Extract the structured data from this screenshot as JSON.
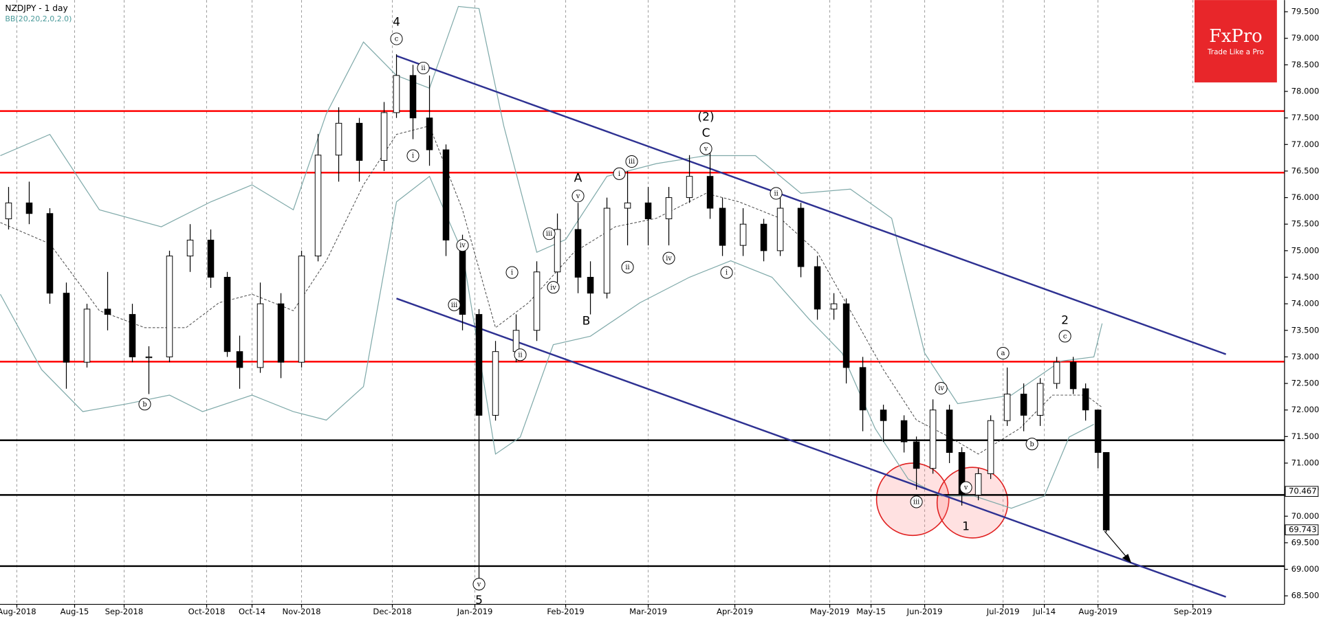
{
  "chart_data": {
    "type": "candlestick",
    "title": "NZDJPY - 1 day",
    "subtitle": "BB(20,20,2,0,2.0)",
    "up_color": "#ffffff",
    "down_color": "#000000",
    "xlim": [
      -4.08,
      307.2
    ],
    "ylim": [
      68.34,
      79.72
    ],
    "grid": true,
    "xticks": [
      {
        "value": 0,
        "label": "Aug-2018"
      },
      {
        "value": 14,
        "label": "Aug-15"
      },
      {
        "value": 26,
        "label": "Sep-2018"
      },
      {
        "value": 46,
        "label": "Oct-2018"
      },
      {
        "value": 57,
        "label": "Oct-14"
      },
      {
        "value": 69,
        "label": "Nov-2018"
      },
      {
        "value": 91,
        "label": "Dec-2018"
      },
      {
        "value": 111,
        "label": "Jan-2019"
      },
      {
        "value": 133,
        "label": "Feb-2019"
      },
      {
        "value": 153,
        "label": "Mar-2019"
      },
      {
        "value": 174,
        "label": "Apr-2019"
      },
      {
        "value": 197,
        "label": "May-2019"
      },
      {
        "value": 207,
        "label": "May-15"
      },
      {
        "value": 220,
        "label": "Jun-2019"
      },
      {
        "value": 239,
        "label": "Jul-2019"
      },
      {
        "value": 249,
        "label": "Jul-14"
      },
      {
        "value": 262,
        "label": "Aug-2019"
      },
      {
        "value": 285,
        "label": "Sep-2019"
      }
    ],
    "yticks": [
      {
        "value": 68.5,
        "label": "68.500"
      },
      {
        "value": 69.0,
        "label": "69.000"
      },
      {
        "value": 69.5,
        "label": "69.500"
      },
      {
        "value": 70.0,
        "label": "70.000"
      },
      {
        "value": 70.5,
        "label": "70.500"
      },
      {
        "value": 71.0,
        "label": "71.000"
      },
      {
        "value": 71.5,
        "label": "71.500"
      },
      {
        "value": 72.0,
        "label": "72.000"
      },
      {
        "value": 72.5,
        "label": "72.500"
      },
      {
        "value": 73.0,
        "label": "73.000"
      },
      {
        "value": 73.5,
        "label": "73.500"
      },
      {
        "value": 74.0,
        "label": "74.000"
      },
      {
        "value": 74.5,
        "label": "74.500"
      },
      {
        "value": 75.0,
        "label": "75.000"
      },
      {
        "value": 75.5,
        "label": "75.500"
      },
      {
        "value": 76.0,
        "label": "76.000"
      },
      {
        "value": 76.5,
        "label": "76.500"
      },
      {
        "value": 77.0,
        "label": "77.000"
      },
      {
        "value": 77.5,
        "label": "77.500"
      },
      {
        "value": 78.0,
        "label": "78.000"
      },
      {
        "value": 78.5,
        "label": "78.500"
      },
      {
        "value": 79.0,
        "label": "79.000"
      },
      {
        "value": 79.5,
        "label": "79.500"
      }
    ],
    "candles": {
      "x": [
        -2,
        3,
        8,
        12,
        17,
        22,
        28,
        32,
        37,
        42,
        47,
        51,
        54,
        59,
        64,
        69,
        73,
        78,
        83,
        89,
        92,
        96,
        100,
        104,
        108,
        112,
        116,
        121,
        126,
        131,
        136,
        139,
        143,
        148,
        153,
        158,
        163,
        168,
        171,
        176,
        181,
        185,
        190,
        194,
        198,
        201,
        205,
        210,
        215,
        218,
        222,
        226,
        229,
        233,
        236,
        240,
        244,
        248,
        252,
        256,
        259,
        262,
        264
      ],
      "open": [
        75.6,
        75.9,
        75.7,
        74.2,
        72.9,
        73.9,
        73.8,
        73.0,
        73.0,
        74.9,
        75.2,
        74.5,
        73.1,
        72.8,
        74.0,
        72.9,
        74.9,
        76.8,
        77.4,
        76.7,
        77.6,
        78.3,
        77.5,
        76.9,
        75.2,
        73.8,
        71.9,
        73.1,
        73.5,
        74.6,
        75.4,
        74.5,
        74.2,
        75.8,
        75.9,
        75.6,
        76.0,
        76.4,
        75.8,
        75.1,
        75.5,
        75.0,
        75.8,
        74.7,
        73.9,
        74.0,
        72.8,
        72.0,
        71.8,
        71.4,
        70.9,
        72.0,
        71.2,
        70.4,
        70.8,
        71.8,
        72.3,
        71.9,
        72.5,
        72.9,
        72.4,
        72.0,
        71.2
      ],
      "high": [
        76.2,
        76.3,
        75.8,
        74.4,
        74.0,
        74.6,
        74.0,
        73.2,
        75.0,
        75.5,
        75.4,
        74.6,
        73.4,
        74.4,
        74.2,
        75.0,
        77.2,
        77.7,
        77.5,
        77.8,
        78.7,
        78.5,
        78.3,
        77.0,
        75.3,
        73.9,
        73.3,
        73.8,
        74.8,
        75.7,
        75.9,
        74.8,
        76.0,
        76.5,
        76.2,
        76.2,
        76.8,
        76.9,
        76.0,
        75.8,
        75.6,
        76.0,
        75.9,
        74.9,
        74.2,
        74.1,
        73.0,
        72.1,
        71.9,
        71.5,
        72.2,
        72.1,
        71.3,
        70.9,
        71.9,
        72.8,
        72.5,
        72.6,
        73.0,
        73.0,
        72.5,
        72.0,
        71.2
      ],
      "low": [
        75.4,
        75.5,
        74.0,
        72.4,
        72.8,
        73.5,
        72.9,
        72.3,
        72.9,
        74.6,
        74.3,
        73.0,
        72.4,
        72.7,
        72.6,
        72.8,
        74.8,
        76.3,
        76.3,
        76.5,
        77.5,
        77.1,
        76.6,
        74.9,
        73.5,
        68.6,
        71.8,
        72.9,
        73.3,
        74.4,
        74.2,
        73.8,
        74.1,
        75.1,
        75.1,
        75.1,
        75.9,
        75.6,
        74.9,
        74.9,
        74.8,
        74.9,
        74.5,
        73.7,
        73.7,
        72.5,
        71.6,
        71.4,
        71.2,
        70.5,
        70.8,
        71.0,
        70.2,
        70.3,
        70.7,
        71.7,
        71.6,
        71.7,
        72.4,
        72.3,
        71.8,
        70.9,
        69.7
      ],
      "close": [
        75.9,
        75.7,
        74.2,
        72.9,
        73.9,
        73.8,
        73.0,
        73.0,
        74.9,
        75.2,
        74.5,
        73.1,
        72.8,
        74.0,
        72.9,
        74.9,
        76.8,
        77.4,
        76.7,
        77.6,
        78.3,
        77.5,
        76.9,
        75.2,
        73.8,
        71.9,
        73.1,
        73.5,
        74.6,
        75.4,
        74.5,
        74.2,
        75.8,
        75.9,
        75.6,
        76.0,
        76.4,
        75.8,
        75.1,
        75.5,
        75.0,
        75.8,
        74.7,
        73.9,
        74.0,
        72.8,
        72.0,
        71.8,
        71.4,
        70.9,
        72.0,
        71.2,
        70.4,
        70.8,
        71.8,
        72.3,
        71.9,
        72.5,
        72.9,
        72.4,
        72.0,
        71.2,
        69.74
      ]
    },
    "band_color": "#7fa9a9",
    "bollinger": {
      "upper": {
        "x": [
          -4,
          8,
          20,
          35,
          47,
          57,
          67,
          75,
          84,
          92,
          100,
          107,
          112,
          118,
          126,
          133,
          143,
          155,
          167,
          179,
          190,
          202,
          212,
          220,
          228,
          241,
          253,
          261,
          263
        ],
        "values": [
          76.79,
          77.19,
          75.77,
          75.45,
          75.92,
          76.24,
          75.77,
          77.58,
          78.93,
          78.3,
          78.06,
          79.6,
          79.56,
          77.35,
          74.97,
          75.21,
          76.4,
          76.64,
          76.79,
          76.79,
          76.08,
          76.16,
          75.61,
          73.07,
          72.12,
          72.28,
          72.92,
          73.0,
          73.63
        ]
      },
      "middle": {
        "x": [
          -4,
          8,
          20,
          31,
          41,
          49,
          57,
          67,
          75,
          84,
          92,
          100,
          108,
          116,
          124,
          135,
          145,
          155,
          167,
          175,
          185,
          194,
          202,
          210,
          218,
          226,
          233,
          243,
          251,
          259,
          263
        ],
        "values": [
          75.53,
          75.13,
          73.87,
          73.55,
          73.55,
          74.02,
          74.18,
          73.87,
          74.81,
          76.24,
          77.19,
          77.35,
          75.77,
          73.55,
          74.02,
          74.97,
          75.45,
          75.61,
          76.08,
          75.92,
          75.61,
          74.97,
          73.87,
          72.76,
          71.81,
          71.49,
          71.17,
          71.65,
          72.28,
          72.28,
          72.05
        ]
      },
      "lower": {
        "x": [
          -4,
          6,
          16,
          27,
          37,
          45,
          57,
          67,
          75,
          84,
          92,
          100,
          108,
          116,
          122,
          130,
          139,
          151,
          163,
          173,
          183,
          192,
          200,
          208,
          216,
          224,
          232,
          241,
          249,
          255,
          261
        ],
        "values": [
          74.18,
          72.76,
          71.97,
          72.12,
          72.28,
          71.97,
          72.28,
          71.97,
          71.81,
          72.44,
          75.92,
          76.4,
          74.97,
          71.17,
          71.49,
          73.23,
          73.39,
          74.02,
          74.5,
          74.81,
          74.5,
          73.71,
          73.07,
          71.65,
          70.7,
          70.38,
          70.38,
          70.15,
          70.38,
          71.49,
          71.73
        ]
      }
    },
    "levels": {
      "red": [
        77.63,
        76.47,
        72.91
      ],
      "black": [
        71.43,
        70.4,
        69.06
      ],
      "red_color": "#ff0000",
      "black_color": "#000000"
    },
    "channel_color": "#2e3192",
    "channels": [
      {
        "x": [
          92,
          293
        ],
        "values": [
          78.67,
          73.05
        ]
      },
      {
        "x": [
          92,
          293
        ],
        "values": [
          74.1,
          68.48
        ]
      }
    ],
    "price_labels": [
      {
        "value": 70.467,
        "label": "70.467"
      },
      {
        "value": 69.743,
        "label": "69.743"
      }
    ],
    "annotations": [
      {
        "text": "4",
        "x": 92,
        "y": 79.31
      },
      {
        "text": "c",
        "x": 92,
        "y": 78.99,
        "circled": true
      },
      {
        "text": "ii",
        "x": 98.5,
        "y": 78.44,
        "circled": true
      },
      {
        "text": "i",
        "x": 96,
        "y": 76.79,
        "circled": true
      },
      {
        "text": "b",
        "x": 31,
        "y": 72.11,
        "circled": true
      },
      {
        "text": "iv",
        "x": 108,
        "y": 75.1,
        "circled": true
      },
      {
        "text": "iii",
        "x": 106,
        "y": 73.98,
        "circled": true
      },
      {
        "text": "v",
        "x": 112,
        "y": 68.72,
        "circled": true
      },
      {
        "text": "5",
        "x": 112,
        "y": 68.42
      },
      {
        "text": "ii",
        "x": 122,
        "y": 73.04,
        "circled": true
      },
      {
        "text": "i",
        "x": 120,
        "y": 74.59,
        "circled": true
      },
      {
        "text": "iii",
        "x": 129,
        "y": 75.32,
        "circled": true
      },
      {
        "text": "iv",
        "x": 130,
        "y": 74.31,
        "circled": true
      },
      {
        "text": "v",
        "x": 136,
        "y": 76.03,
        "circled": true
      },
      {
        "text": "A",
        "x": 136,
        "y": 76.37
      },
      {
        "text": "B",
        "x": 138,
        "y": 73.68
      },
      {
        "text": "i",
        "x": 146,
        "y": 76.45,
        "circled": true
      },
      {
        "text": "iii",
        "x": 149,
        "y": 76.68,
        "circled": true
      },
      {
        "text": "ii",
        "x": 148,
        "y": 74.69,
        "circled": true
      },
      {
        "text": "iv",
        "x": 158,
        "y": 74.86,
        "circled": true
      },
      {
        "text": "v",
        "x": 167,
        "y": 76.92,
        "circled": true
      },
      {
        "text": "C",
        "x": 167,
        "y": 77.22
      },
      {
        "text": "(2)",
        "x": 167,
        "y": 77.52
      },
      {
        "text": "i",
        "x": 172,
        "y": 74.59,
        "circled": true
      },
      {
        "text": "ii",
        "x": 184,
        "y": 76.08,
        "circled": true
      },
      {
        "text": "iv",
        "x": 224,
        "y": 72.41,
        "circled": true
      },
      {
        "text": "iii",
        "x": 218,
        "y": 70.27,
        "circled": true
      },
      {
        "text": "v",
        "x": 230,
        "y": 70.54,
        "circled": true
      },
      {
        "text": "1",
        "x": 230,
        "y": 69.81
      },
      {
        "text": "a",
        "x": 239,
        "y": 73.07,
        "circled": true
      },
      {
        "text": "b",
        "x": 246,
        "y": 71.36,
        "circled": true
      },
      {
        "text": "c",
        "x": 254,
        "y": 73.39,
        "circled": true
      },
      {
        "text": "2",
        "x": 254,
        "y": 73.69
      }
    ],
    "logo": {
      "name": "FxPro",
      "tagline": "Trade Like a Pro"
    }
  }
}
